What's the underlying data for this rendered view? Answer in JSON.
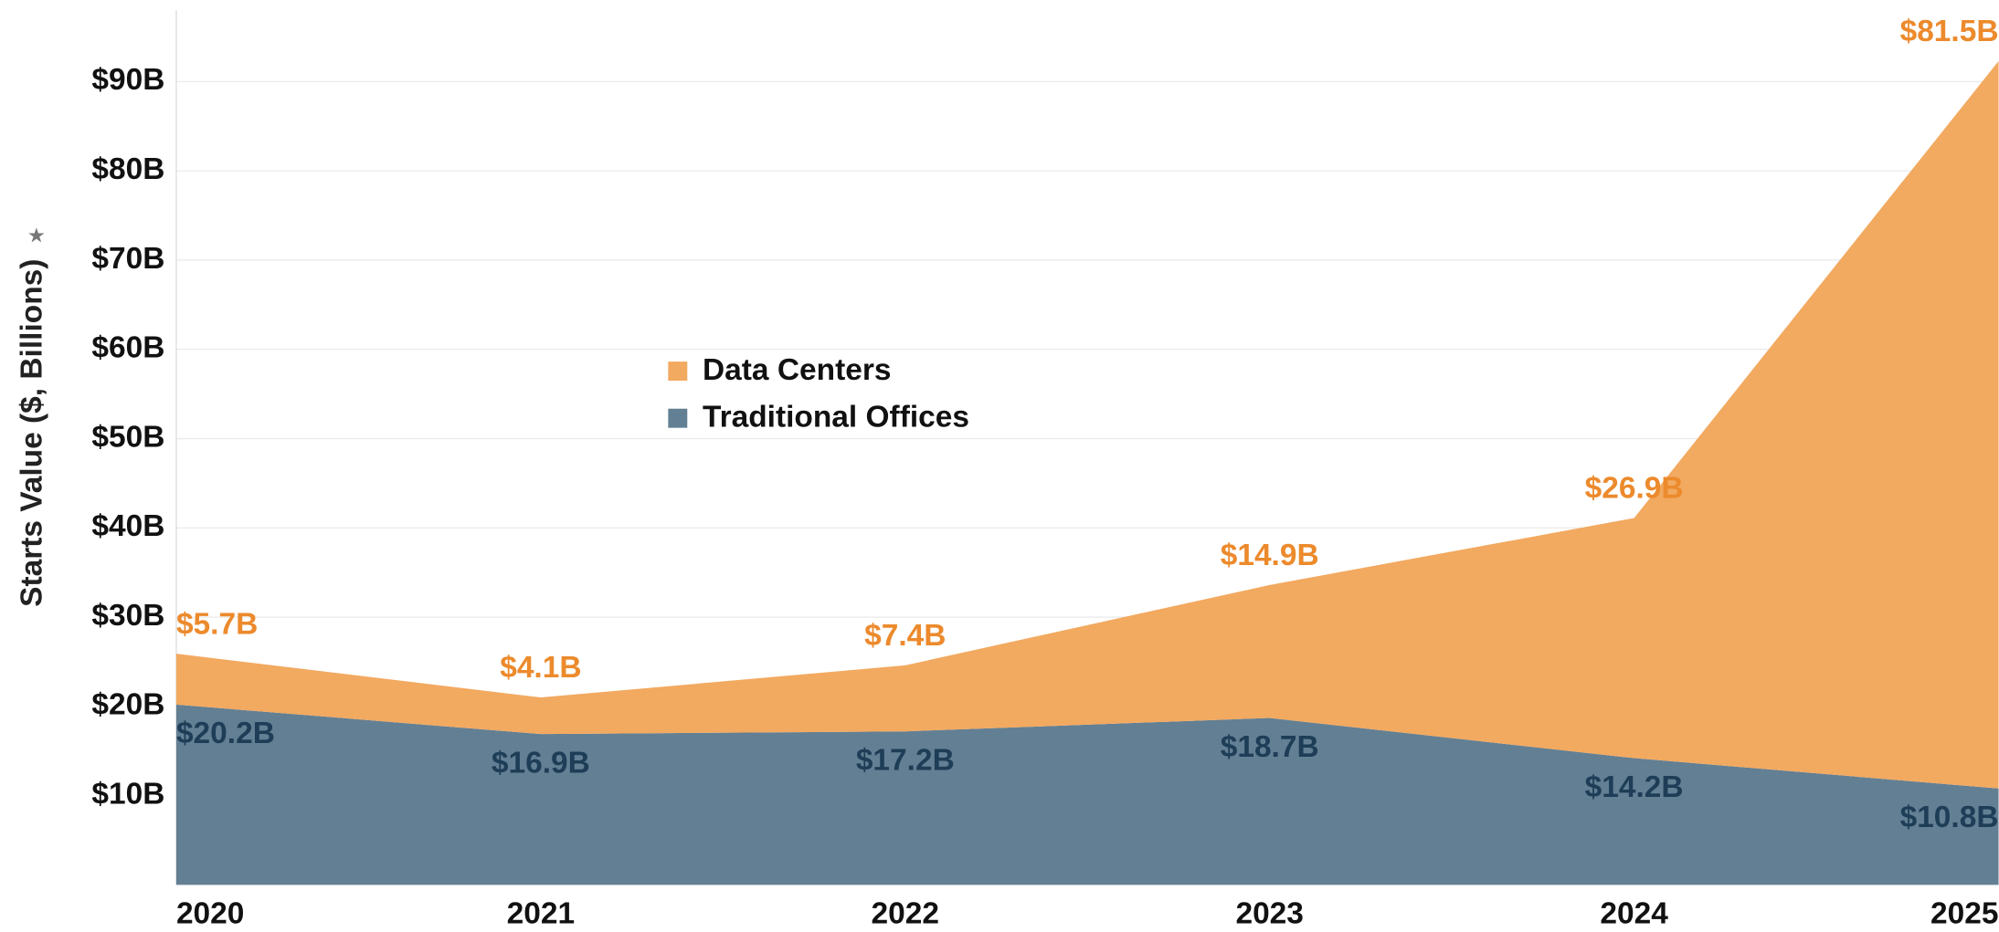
{
  "chart_data": {
    "type": "stacked_area",
    "y_label": "Starts Value ($, Billions)",
    "categories": [
      "2020",
      "2021",
      "2022",
      "2023",
      "2024",
      "2025"
    ],
    "series": [
      {
        "name": "Data Centers",
        "color": "#f2a960",
        "label_color": "#ec8a2c",
        "values": [
          5.7,
          4.1,
          7.4,
          14.9,
          26.9,
          81.5
        ],
        "value_labels": [
          "$5.7B",
          "$4.1B",
          "$7.4B",
          "$14.9B",
          "$26.9B",
          "$81.5B"
        ]
      },
      {
        "name": "Traditional Offices",
        "color": "#637f93",
        "label_color": "#1e3d57",
        "values": [
          20.2,
          16.9,
          17.2,
          18.7,
          14.2,
          10.8
        ],
        "value_labels": [
          "$20.2B",
          "$16.9B",
          "$17.2B",
          "$18.7B",
          "$14.2B",
          "$10.8B"
        ]
      }
    ],
    "ylim": [
      0,
      99
    ],
    "yticks": [
      {
        "value": 10,
        "label": "$10B"
      },
      {
        "value": 20,
        "label": "$20B"
      },
      {
        "value": 30,
        "label": "$30B"
      },
      {
        "value": 40,
        "label": "$40B"
      },
      {
        "value": 50,
        "label": "$50B"
      },
      {
        "value": 60,
        "label": "$60B"
      },
      {
        "value": 70,
        "label": "$70B"
      },
      {
        "value": 80,
        "label": "$80B"
      },
      {
        "value": 90,
        "label": "$90B"
      }
    ],
    "grid": true
  }
}
